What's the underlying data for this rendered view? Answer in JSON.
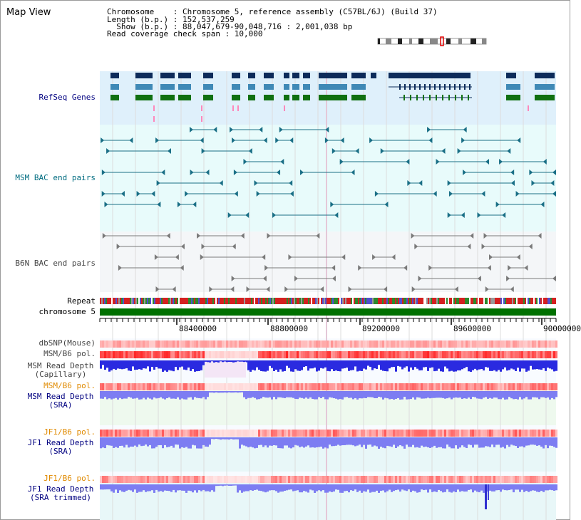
{
  "header": {
    "title": "Map View",
    "line1": "Chromosome    : Chromosome 5, reference assembly (C57BL/6J) (Build 37)",
    "line2": "Length (b.p.) : 152,537,259",
    "line3": "  Show (b.p.) : 88,047,679-90,048,716 : 2,001,038 bp",
    "line4": "Read coverage check span : 10,000"
  },
  "tracks": {
    "refseq": "RefSeq Genes",
    "msm_bac": "MSM BAC end pairs",
    "b6n_bac": "B6N BAC end pairs",
    "repeat": "Repeat",
    "chromosome": "chromosome 5",
    "dbsnp": "dbSNP(Mouse)",
    "msm_pol": "MSM/B6 pol.",
    "msm_depth_cap_1": "MSM Read Depth",
    "msm_depth_cap_2": "(Capillary)",
    "msm_pol_sra": "MSM/B6 pol.",
    "msm_depth_sra_1": "MSM Read Depth",
    "msm_depth_sra_2": "(SRA)",
    "jf1_pol": "JF1/B6 pol.",
    "jf1_depth_1": "JF1 Read Depth",
    "jf1_depth_2": "(SRA)",
    "jf1_pol_t": "JF1/B6 pol.",
    "jf1_depth_t1": "JF1 Read Depth",
    "jf1_depth_t2": "(SRA trimmed)"
  },
  "axis": {
    "ticks": [
      "88400000",
      "88800000",
      "89200000",
      "89600000",
      "90000000"
    ]
  },
  "colors": {
    "refseq_bg": "#dff0fb",
    "msm_bg": "#e8fbfb",
    "b6n_bg": "#f4f6f8",
    "chrom": "#007000",
    "depth_cap": "#2a2ae0",
    "depth_sra": "#7d7df2"
  }
}
